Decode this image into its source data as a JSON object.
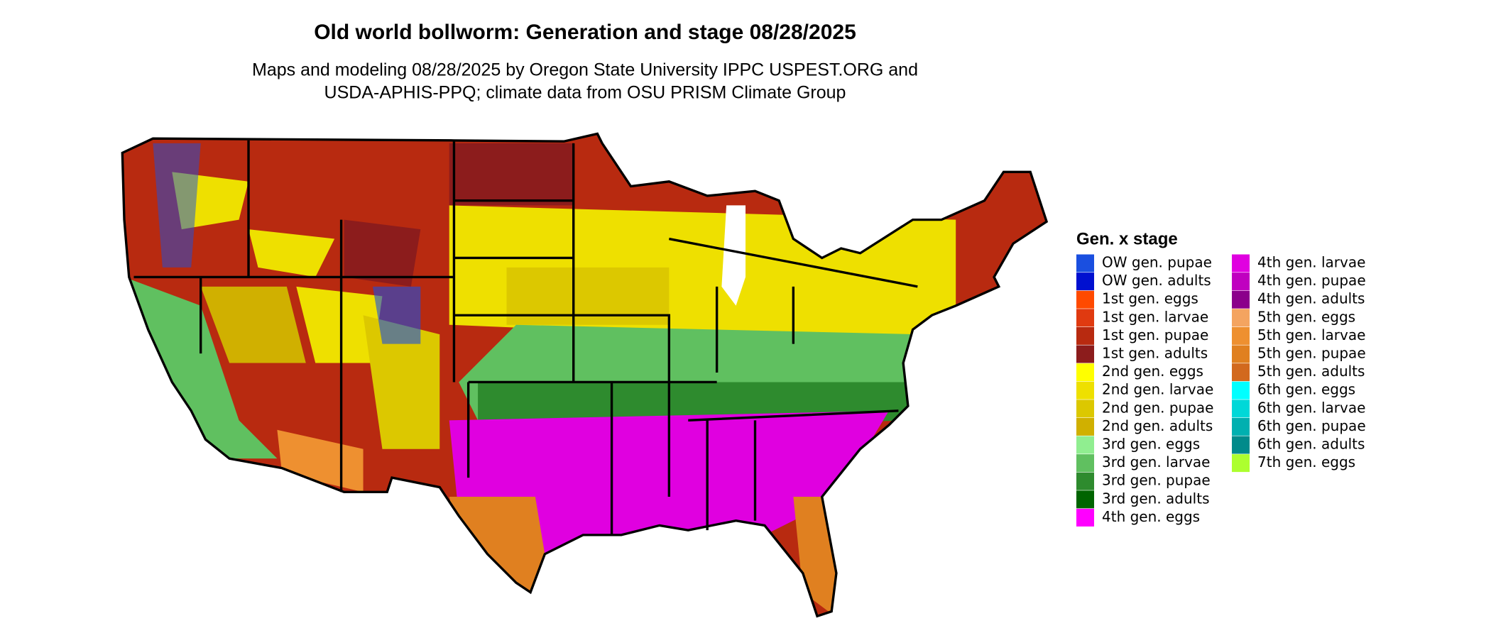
{
  "title": "Old world bollworm: Generation and stage 08/28/2025",
  "subtitle": [
    "Maps and modeling 08/28/2025 by Oregon State University IPPC USPEST.ORG and",
    "USDA-APHIS-PPQ; climate data from OSU PRISM Climate Group"
  ],
  "legend": {
    "title": "Gen. x stage",
    "items": [
      {
        "label": "OW gen. pupae",
        "color": "#1a4fe0"
      },
      {
        "label": "OW gen. adults",
        "color": "#0010d0"
      },
      {
        "label": "1st gen. eggs",
        "color": "#ff4a00"
      },
      {
        "label": "1st gen. larvae",
        "color": "#e03a10"
      },
      {
        "label": "1st gen. pupae",
        "color": "#b82a10"
      },
      {
        "label": "1st gen. adults",
        "color": "#8c1c1c"
      },
      {
        "label": "2nd gen. eggs",
        "color": "#ffff00"
      },
      {
        "label": "2nd gen. larvae",
        "color": "#eee000"
      },
      {
        "label": "2nd gen. pupae",
        "color": "#dcc800"
      },
      {
        "label": "2nd gen. adults",
        "color": "#d0b000"
      },
      {
        "label": "3rd gen. eggs",
        "color": "#90ee90"
      },
      {
        "label": "3rd gen. larvae",
        "color": "#60c060"
      },
      {
        "label": "3rd gen. pupae",
        "color": "#2e8b2e"
      },
      {
        "label": "3rd gen. adults",
        "color": "#006400"
      },
      {
        "label": "4th gen. eggs",
        "color": "#ff00ff"
      },
      {
        "label": "4th gen. larvae",
        "color": "#e000e0"
      },
      {
        "label": "4th gen. pupae",
        "color": "#c000c0"
      },
      {
        "label": "4th gen. adults",
        "color": "#8b008b"
      },
      {
        "label": "5th gen. eggs",
        "color": "#f4a460"
      },
      {
        "label": "5th gen. larvae",
        "color": "#ee9030"
      },
      {
        "label": "5th gen. pupae",
        "color": "#e08020"
      },
      {
        "label": "5th gen. adults",
        "color": "#d2691e"
      },
      {
        "label": "6th gen. eggs",
        "color": "#00ffff"
      },
      {
        "label": "6th gen. larvae",
        "color": "#00d8d8"
      },
      {
        "label": "6th gen. pupae",
        "color": "#00b0b0"
      },
      {
        "label": "6th gen. adults",
        "color": "#008b8b"
      },
      {
        "label": "7th gen. eggs",
        "color": "#adff2f"
      }
    ]
  }
}
